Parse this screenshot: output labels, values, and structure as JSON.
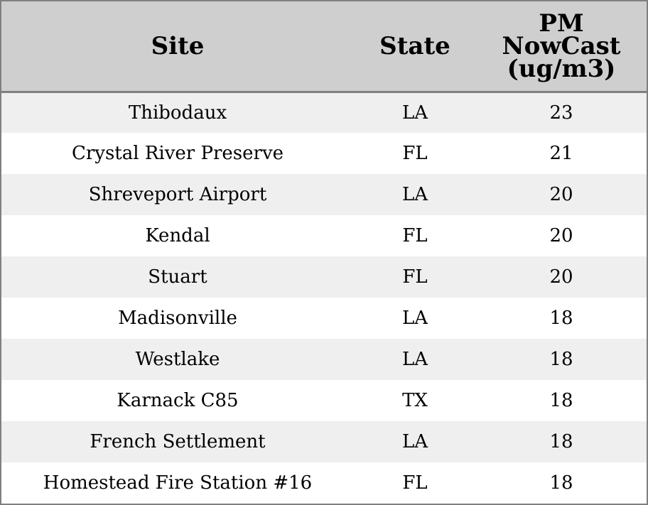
{
  "chart_data": {
    "type": "table",
    "columns": [
      "Site",
      "State",
      "PM NowCast (ug/m3)"
    ],
    "header": {
      "site": "Site",
      "state": "State",
      "pm_lines": [
        "PM",
        "NowCast",
        "(ug/m3)"
      ]
    },
    "rows": [
      {
        "site": "Thibodaux",
        "state": "LA",
        "pm": "23"
      },
      {
        "site": "Crystal River Preserve",
        "state": "FL",
        "pm": "21"
      },
      {
        "site": "Shreveport Airport",
        "state": "LA",
        "pm": "20"
      },
      {
        "site": "Kendal",
        "state": "FL",
        "pm": "20"
      },
      {
        "site": "Stuart",
        "state": "FL",
        "pm": "20"
      },
      {
        "site": "Madisonville",
        "state": "LA",
        "pm": "18"
      },
      {
        "site": "Westlake",
        "state": "LA",
        "pm": "18"
      },
      {
        "site": "Karnack C85",
        "state": "TX",
        "pm": "18"
      },
      {
        "site": "French Settlement",
        "state": "LA",
        "pm": "18"
      },
      {
        "site": "Homestead Fire Station #16",
        "state": "FL",
        "pm": "18"
      }
    ]
  },
  "colors": {
    "header_bg": "#cfcfcf",
    "row_alt_bg": "#efefef",
    "row_bg": "#ffffff",
    "border": "#808080"
  }
}
